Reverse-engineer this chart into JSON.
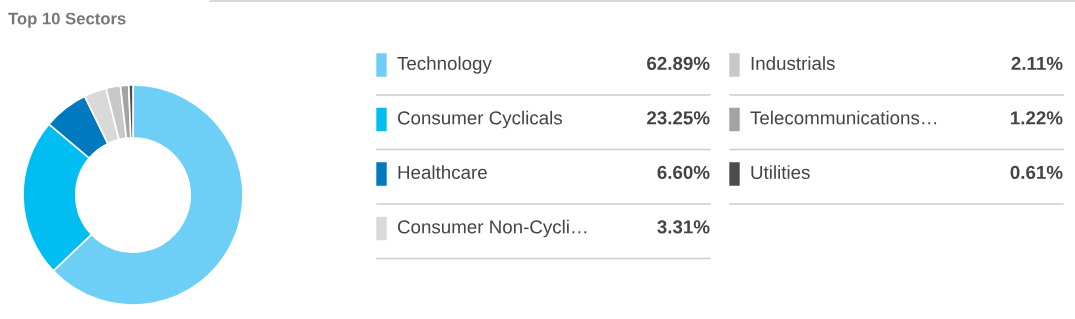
{
  "chart_data": {
    "type": "donut",
    "title": "Top 10 Sectors",
    "categories": [
      "Technology",
      "Consumer Cyclicals",
      "Healthcare",
      "Consumer Non-Cycli…",
      "Industrials",
      "Telecommunications…",
      "Utilities"
    ],
    "values": [
      62.89,
      23.25,
      6.6,
      3.31,
      2.11,
      1.22,
      0.61
    ],
    "value_labels": [
      "62.89%",
      "23.25%",
      "6.60%",
      "3.31%",
      "2.11%",
      "1.22%",
      "0.61%"
    ],
    "colors": [
      "#6dcff6",
      "#00bdf2",
      "#0079c1",
      "#d9d9d9",
      "#c8c8c8",
      "#a3a3a3",
      "#4d4d4d"
    ],
    "legend": "right"
  }
}
